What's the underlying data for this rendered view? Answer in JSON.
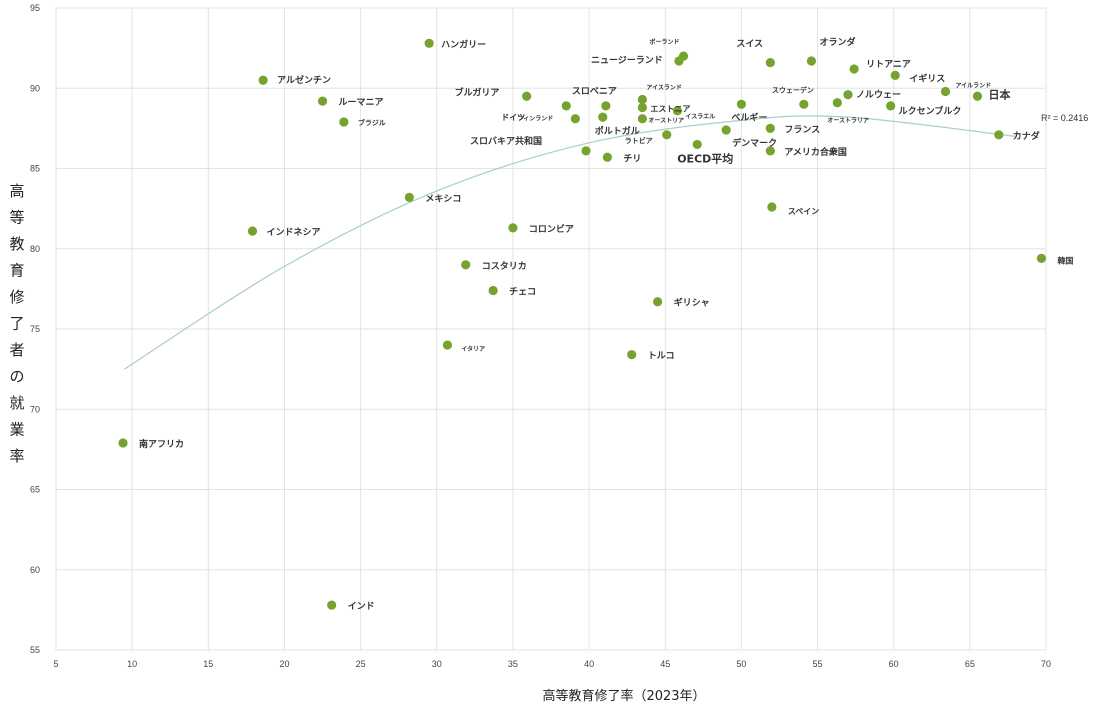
{
  "chart_data": {
    "type": "scatter",
    "title": "",
    "xlabel": "高等教育修了率（2023年）",
    "ylabel": "高等教育修了者の就業率",
    "xlim": [
      5,
      70
    ],
    "ylim": [
      55,
      95
    ],
    "x_ticks": [
      "5",
      "10",
      "15",
      "20",
      "25",
      "30",
      "35",
      "40",
      "45",
      "50",
      "55",
      "60",
      "65",
      "70"
    ],
    "y_ticks": [
      "55",
      "60",
      "65",
      "70",
      "75",
      "80",
      "85",
      "90",
      "95"
    ],
    "grid": true,
    "marker_color": "#76a22e",
    "highlight_color": "#e8751a",
    "trendline": {
      "type": "polynomial",
      "r2_label": "R² = 0.2416",
      "color": "#a8cfc3",
      "points": [
        [
          9.5,
          72.5
        ],
        [
          20,
          78.9
        ],
        [
          30,
          83.6
        ],
        [
          40,
          86.6
        ],
        [
          50,
          88.0
        ],
        [
          57,
          88.2
        ],
        [
          68,
          87.0
        ]
      ]
    },
    "points": [
      {
        "label": "ハンガリー",
        "x": 29.5,
        "y": 92.8,
        "size": 9
      },
      {
        "label": "ポーランド",
        "x": 46.2,
        "y": 92.0,
        "size": 6
      },
      {
        "label": "ニュージーランド",
        "x": 45.9,
        "y": 91.7,
        "size": 9
      },
      {
        "label": "スイス",
        "x": 51.9,
        "y": 91.6,
        "size": 9
      },
      {
        "label": "オランダ",
        "x": 54.6,
        "y": 91.7,
        "size": 9
      },
      {
        "label": "リトアニア",
        "x": 57.4,
        "y": 91.2,
        "size": 9
      },
      {
        "label": "イギリス",
        "x": 60.1,
        "y": 90.8,
        "size": 9
      },
      {
        "label": "アイルランド",
        "x": 63.4,
        "y": 89.8,
        "size": 6
      },
      {
        "label": "日本",
        "x": 65.5,
        "y": 89.5,
        "size": 11,
        "highlight": true
      },
      {
        "label": "アルゼンチン",
        "x": 18.6,
        "y": 90.5,
        "size": 9
      },
      {
        "label": "ルーマニア",
        "x": 22.5,
        "y": 89.2,
        "size": 9
      },
      {
        "label": "ブラジル",
        "x": 23.9,
        "y": 87.9,
        "size": 7
      },
      {
        "label": "ブルガリア",
        "x": 35.9,
        "y": 89.5,
        "size": 9
      },
      {
        "label": "スロベニア",
        "x": 41.1,
        "y": 88.9,
        "size": 9
      },
      {
        "label": "アイスランド",
        "x": 43.5,
        "y": 89.3,
        "size": 6
      },
      {
        "label": "エストニア",
        "x": 43.5,
        "y": 88.8,
        "size": 8
      },
      {
        "label": "ドイツ",
        "x": 38.5,
        "y": 88.9,
        "size": 8
      },
      {
        "label": "フィンランド",
        "x": 39.1,
        "y": 88.1,
        "size": 6
      },
      {
        "label": "オーストリア",
        "x": 43.5,
        "y": 88.1,
        "size": 6
      },
      {
        "label": "イスラエル",
        "x": 45.8,
        "y": 88.6,
        "size": 6
      },
      {
        "label": "ポルトガル",
        "x": 40.9,
        "y": 88.2,
        "size": 9
      },
      {
        "label": "ラトビア",
        "x": 45.1,
        "y": 87.1,
        "size": 7
      },
      {
        "label": "スウェーデン",
        "x": 54.1,
        "y": 89.0,
        "size": 7
      },
      {
        "label": "ノルウェー",
        "x": 57.0,
        "y": 89.6,
        "size": 9
      },
      {
        "label": "オーストラリア",
        "x": 56.3,
        "y": 89.1,
        "size": 6
      },
      {
        "label": "ルクセンブルク",
        "x": 59.8,
        "y": 88.9,
        "size": 9
      },
      {
        "label": "ベルギー",
        "x": 50.0,
        "y": 89.0,
        "size": 9
      },
      {
        "label": "フランス",
        "x": 51.9,
        "y": 87.5,
        "size": 9
      },
      {
        "label": "デンマーク",
        "x": 49.0,
        "y": 87.4,
        "size": 9
      },
      {
        "label": "OECD平均",
        "x": 47.1,
        "y": 86.5,
        "size": 11,
        "highlight": true
      },
      {
        "label": "アメリカ合衆国",
        "x": 51.9,
        "y": 86.1,
        "size": 9
      },
      {
        "label": "スロバキア共和国",
        "x": 39.8,
        "y": 86.1,
        "size": 9
      },
      {
        "label": "チリ",
        "x": 41.2,
        "y": 85.7,
        "size": 9
      },
      {
        "label": "カナダ",
        "x": 66.9,
        "y": 87.1,
        "size": 9
      },
      {
        "label": "メキシコ",
        "x": 28.2,
        "y": 83.2,
        "size": 9
      },
      {
        "label": "スペイン",
        "x": 52.0,
        "y": 82.6,
        "size": 8
      },
      {
        "label": "コロンビア",
        "x": 35.0,
        "y": 81.3,
        "size": 9
      },
      {
        "label": "インドネシア",
        "x": 17.9,
        "y": 81.1,
        "size": 9
      },
      {
        "label": "コスタリカ",
        "x": 31.9,
        "y": 79.0,
        "size": 9
      },
      {
        "label": "韓国",
        "x": 69.7,
        "y": 79.4,
        "size": 8
      },
      {
        "label": "チェコ",
        "x": 33.7,
        "y": 77.4,
        "size": 9
      },
      {
        "label": "ギリシャ",
        "x": 44.5,
        "y": 76.7,
        "size": 9
      },
      {
        "label": "イタリア",
        "x": 30.7,
        "y": 74.0,
        "size": 6
      },
      {
        "label": "トルコ",
        "x": 42.8,
        "y": 73.4,
        "size": 9
      },
      {
        "label": "南アフリカ",
        "x": 9.4,
        "y": 67.9,
        "size": 9
      },
      {
        "label": "インド",
        "x": 23.1,
        "y": 57.8,
        "size": 9
      }
    ]
  }
}
